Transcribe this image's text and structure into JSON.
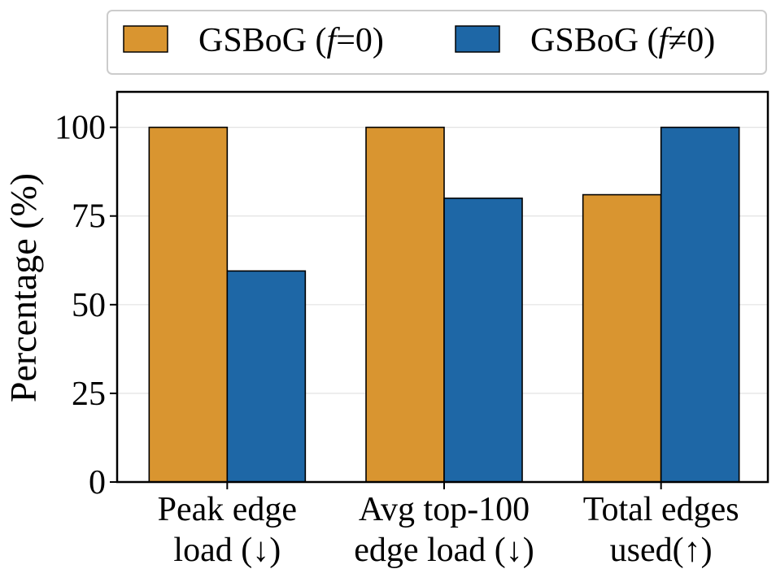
{
  "chart_data": {
    "type": "bar",
    "categories": [
      [
        "Peak edge",
        "load (↓)"
      ],
      [
        "Avg top-100",
        "edge load (↓)"
      ],
      [
        "Total edges",
        "used(↑)"
      ]
    ],
    "series": [
      {
        "name_prefix": "GSBoG (",
        "name_var": "f",
        "name_op": "=",
        "name_suffix": "0)",
        "color": "#d99530",
        "values": [
          100,
          100,
          81
        ]
      },
      {
        "name_prefix": "GSBoG (",
        "name_var": "f",
        "name_op": "≠",
        "name_suffix": "0)",
        "color": "#1e67a6",
        "values": [
          59.5,
          80,
          100
        ]
      }
    ],
    "ylabel": "Percentage (%)",
    "ylim": [
      0,
      110
    ],
    "yticks": [
      0,
      25,
      50,
      75,
      100
    ],
    "grid": true,
    "legend_position": "top"
  }
}
